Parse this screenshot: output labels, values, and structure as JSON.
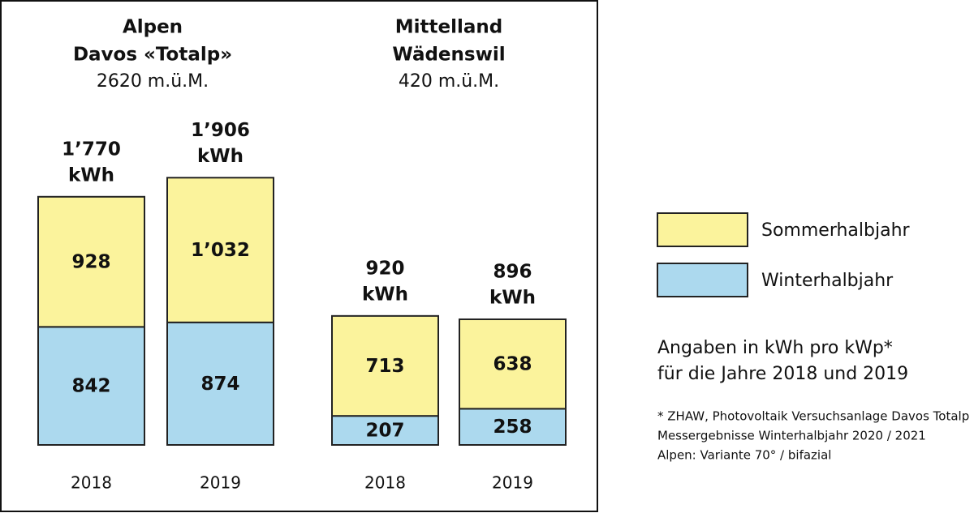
{
  "chart_data": {
    "type": "stacked_bar",
    "groups": [
      {
        "title": "Alpen",
        "subtitle": "Davos «Totalp»",
        "altitude": "2620 m.ü.M."
      },
      {
        "title": "Mittelland",
        "subtitle": "Wädenswil",
        "altitude": "420 m.ü.M."
      }
    ],
    "categories": [
      "2018",
      "2019",
      "2018",
      "2019"
    ],
    "series": [
      {
        "name": "Winterhalbjahr",
        "color": "#acd9ee",
        "values": [
          842,
          874,
          207,
          258
        ],
        "value_labels": [
          "842",
          "874",
          "207",
          "258"
        ]
      },
      {
        "name": "Sommerhalbjahr",
        "color": "#fbf39c",
        "values": [
          928,
          1032,
          713,
          638
        ],
        "value_labels": [
          "928",
          "1’032",
          "713",
          "638"
        ]
      }
    ],
    "totals": [
      1770,
      1906,
      920,
      896
    ],
    "total_labels": [
      "1’770",
      "1’906",
      "920",
      "896"
    ],
    "total_unit": "kWh",
    "note": [
      "Angaben in kWh pro kWp*",
      "für die Jahre 2018 und 2019"
    ],
    "footnote": [
      "* ZHAW, Photovoltaik Versuchsanlage Davos Totalp",
      "Messergebnisse Winterhalbjahr 2020 / 2021",
      "Alpen: Variante 70° / bifazial"
    ]
  }
}
